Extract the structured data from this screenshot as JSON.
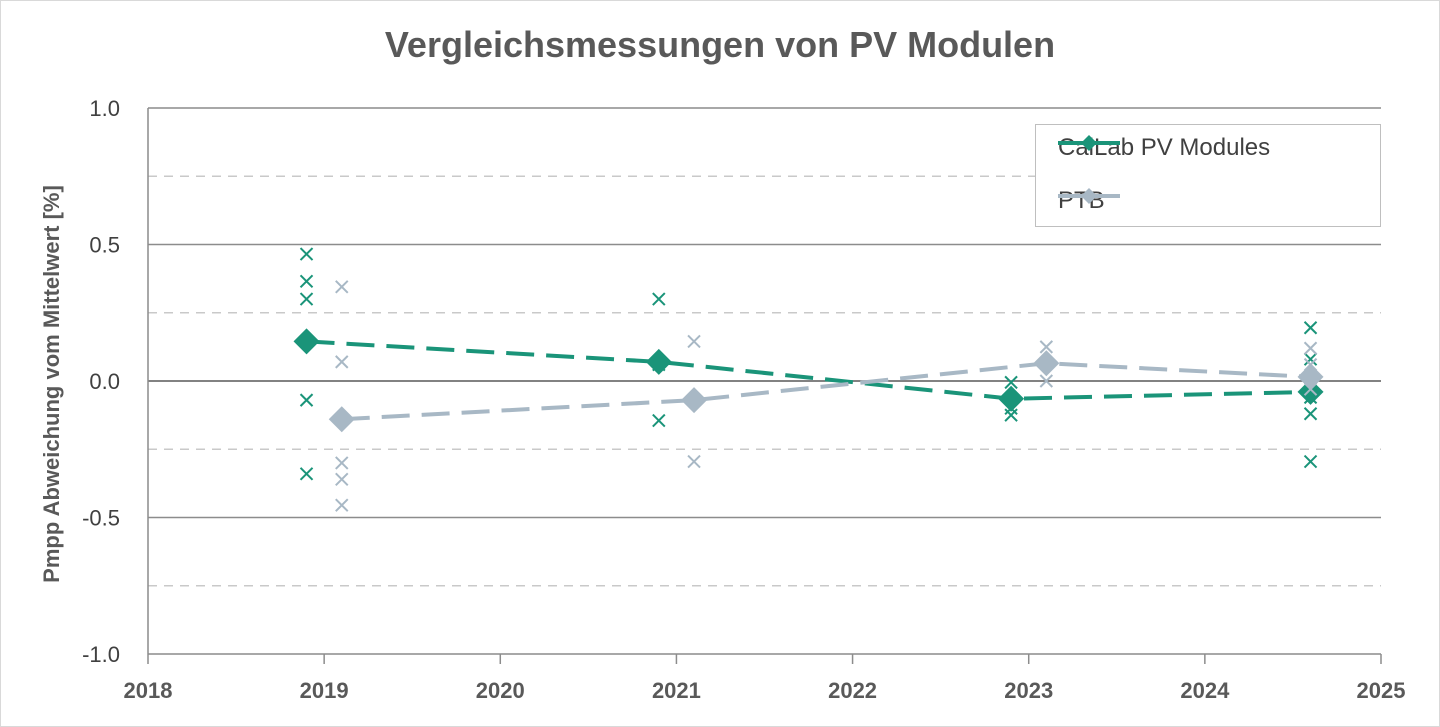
{
  "chart_data": {
    "type": "scatter",
    "title": "Vergleichsmessungen von PV Modulen",
    "xlabel": "",
    "ylabel": "Pmpp Abweichung vom Mittelwert [%]",
    "xlim": [
      2018,
      2025
    ],
    "ylim": [
      -1.0,
      1.0
    ],
    "x_ticks": [
      "2018",
      "2019",
      "2020",
      "2021",
      "2022",
      "2023",
      "2024",
      "2025"
    ],
    "y_ticks": [
      "1.0",
      "0.5",
      "0.0",
      "-0.5",
      "-1.0"
    ],
    "major_gridlines": [
      -1.0,
      -0.5,
      0.0,
      0.5,
      1.0
    ],
    "minor_dashed_gridlines": [
      -0.75,
      -0.25,
      0.25,
      0.75
    ],
    "legend_position": "top-right",
    "series": [
      {
        "name": "CalLab PV Modules",
        "color": "#1a9479",
        "line_style": "dashed",
        "marker": "diamond",
        "mean_points": [
          {
            "x": 2018.9,
            "y": 0.145
          },
          {
            "x": 2020.9,
            "y": 0.07
          },
          {
            "x": 2022.9,
            "y": -0.065
          },
          {
            "x": 2024.6,
            "y": -0.04
          }
        ],
        "individual_points": [
          {
            "x": 2018.9,
            "y": 0.465
          },
          {
            "x": 2018.9,
            "y": 0.365
          },
          {
            "x": 2018.9,
            "y": 0.3
          },
          {
            "x": 2018.9,
            "y": -0.07
          },
          {
            "x": 2018.9,
            "y": -0.34
          },
          {
            "x": 2020.9,
            "y": 0.3
          },
          {
            "x": 2020.9,
            "y": 0.06
          },
          {
            "x": 2020.9,
            "y": -0.145
          },
          {
            "x": 2022.9,
            "y": -0.005
          },
          {
            "x": 2022.9,
            "y": -0.1
          },
          {
            "x": 2022.9,
            "y": -0.125
          },
          {
            "x": 2024.6,
            "y": 0.195
          },
          {
            "x": 2024.6,
            "y": 0.08
          },
          {
            "x": 2024.6,
            "y": -0.06
          },
          {
            "x": 2024.6,
            "y": -0.12
          },
          {
            "x": 2024.6,
            "y": -0.295
          }
        ]
      },
      {
        "name": "PTB",
        "color": "#a8b8c5",
        "line_style": "dashed",
        "marker": "diamond",
        "mean_points": [
          {
            "x": 2019.1,
            "y": -0.14
          },
          {
            "x": 2021.1,
            "y": -0.07
          },
          {
            "x": 2023.1,
            "y": 0.065
          },
          {
            "x": 2024.6,
            "y": 0.015
          }
        ],
        "individual_points": [
          {
            "x": 2019.1,
            "y": 0.345
          },
          {
            "x": 2019.1,
            "y": 0.07
          },
          {
            "x": 2019.1,
            "y": -0.3
          },
          {
            "x": 2019.1,
            "y": -0.36
          },
          {
            "x": 2019.1,
            "y": -0.455
          },
          {
            "x": 2021.1,
            "y": 0.145
          },
          {
            "x": 2021.1,
            "y": -0.295
          },
          {
            "x": 2023.1,
            "y": 0.125
          },
          {
            "x": 2023.1,
            "y": 0.0
          },
          {
            "x": 2024.6,
            "y": 0.12
          },
          {
            "x": 2024.6,
            "y": 0.06
          },
          {
            "x": 2024.6,
            "y": -0.03
          }
        ]
      }
    ]
  }
}
